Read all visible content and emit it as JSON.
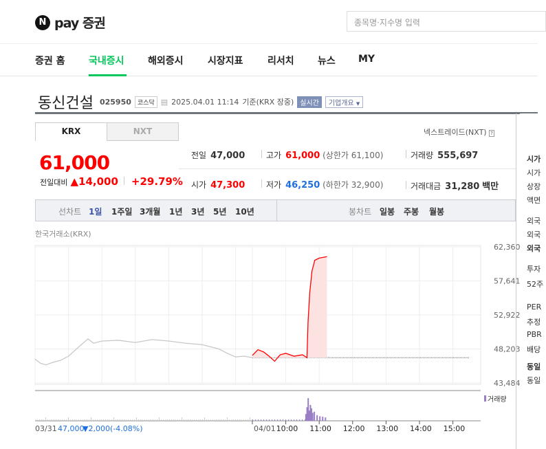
{
  "header": {
    "logo_mark": "N",
    "logo_text": "pay 증권",
    "search_placeholder": "종목명·지수명 입력"
  },
  "nav": {
    "items": [
      "증권 홈",
      "국내증시",
      "해외증시",
      "시장지표",
      "리서치",
      "뉴스",
      "MY"
    ],
    "active": "국내증시"
  },
  "stock": {
    "name": "동신건설",
    "code": "025950",
    "market": "코스닥",
    "datetime": "2025.04.01 11:14",
    "basis": "기준(KRX 장중)",
    "realtime_badge": "실시간",
    "company_button": "기업개요"
  },
  "exchange_tabs": [
    "KRX",
    "NXT"
  ],
  "nxt_link": "넥스트레이드(NXT)",
  "quote": {
    "price": "61,000",
    "change_label": "전일대비",
    "change": "▲14,000",
    "change_pct": "+29.79%",
    "prev_label": "전일",
    "prev": "47,000",
    "high_label": "고가",
    "high": "61,000",
    "upper_limit": "(상한가 61,100)",
    "volume_label": "거래량",
    "volume": "555,697",
    "open_label": "시가",
    "open": "47,300",
    "low_label": "저가",
    "low": "46,250",
    "lower_limit": "(하한가 32,900)",
    "amount_label": "거래대금",
    "amount": "31,280",
    "amount_unit": "백만"
  },
  "chart_controls": {
    "line_label": "선차트",
    "line_periods": [
      "1일",
      "1주일",
      "3개월",
      "1년",
      "3년",
      "5년",
      "10년"
    ],
    "active": "1일",
    "candle_label": "봉차트",
    "candle_periods": [
      "일봉",
      "주봉",
      "월봉"
    ]
  },
  "colors": {
    "up": "#ff0000",
    "down": "#1e6fe0",
    "accent": "#03c75a",
    "volume": "#9b7fc6"
  },
  "side_fragments": [
    "시가",
    "시가",
    "상장",
    "액면",
    "외국",
    "외국",
    "외국",
    "투자",
    "52주",
    "PER",
    "추정",
    "PBR",
    "배당",
    "동일",
    "동일"
  ],
  "chart_data": {
    "type": "line",
    "source_label": "한국거래소(KRX)",
    "ylim": [
      43484,
      62360
    ],
    "yticks": [
      "62,360",
      "57,641",
      "52,922",
      "48,203",
      "43,484"
    ],
    "reference_price": 47000,
    "xticks": [
      "04/01",
      "10:00",
      "11:00",
      "12:00",
      "13:00",
      "14:00",
      "15:00"
    ],
    "prev_day": {
      "date": "03/31",
      "close": "47,000",
      "change": "▼2,000",
      "change_pct": "(-4.08%)",
      "series": [
        [
          "09:00",
          46800
        ],
        [
          "09:10",
          46200
        ],
        [
          "09:20",
          46000
        ],
        [
          "09:30",
          46300
        ],
        [
          "09:45",
          46600
        ],
        [
          "10:00",
          47200
        ],
        [
          "10:20",
          48600
        ],
        [
          "10:35",
          49600
        ],
        [
          "10:45",
          49000
        ],
        [
          "11:00",
          49300
        ],
        [
          "11:30",
          49400
        ],
        [
          "12:00",
          49100
        ],
        [
          "12:30",
          49500
        ],
        [
          "13:00",
          49300
        ],
        [
          "13:30",
          49000
        ],
        [
          "14:00",
          48800
        ],
        [
          "14:30",
          48200
        ],
        [
          "14:45",
          47600
        ],
        [
          "15:00",
          47100
        ],
        [
          "15:15",
          47200
        ],
        [
          "15:30",
          47000
        ]
      ]
    },
    "today": {
      "date": "04/01",
      "series": [
        [
          "09:00",
          47300
        ],
        [
          "09:10",
          48100
        ],
        [
          "09:20",
          47800
        ],
        [
          "09:30",
          47200
        ],
        [
          "09:40",
          46500
        ],
        [
          "09:50",
          47400
        ],
        [
          "10:00",
          47600
        ],
        [
          "10:15",
          47200
        ],
        [
          "10:30",
          47400
        ],
        [
          "10:38",
          47000
        ],
        [
          "10:40",
          52000
        ],
        [
          "10:43",
          56000
        ],
        [
          "10:47",
          59000
        ],
        [
          "10:52",
          60500
        ],
        [
          "11:00",
          60800
        ],
        [
          "11:14",
          61000
        ]
      ]
    },
    "volume_label": "거래량",
    "volume_today": [
      [
        "10:35",
        30
      ],
      [
        "10:37",
        60
      ],
      [
        "10:39",
        100
      ],
      [
        "10:41",
        45
      ],
      [
        "10:43",
        70
      ],
      [
        "10:45",
        55
      ],
      [
        "10:47",
        35
      ],
      [
        "10:50",
        40
      ],
      [
        "10:55",
        25
      ],
      [
        "11:00",
        20
      ],
      [
        "11:05",
        18
      ],
      [
        "11:10",
        15
      ]
    ]
  }
}
